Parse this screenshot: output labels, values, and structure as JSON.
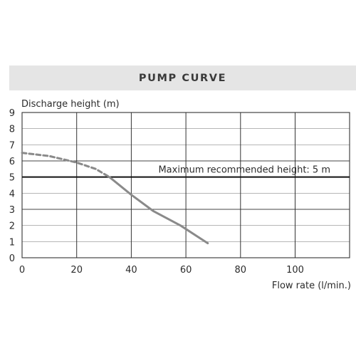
{
  "header": {
    "title": "PUMP CURVE"
  },
  "chart_data": {
    "type": "line",
    "title": "PUMP CURVE",
    "ylabel": "Discharge height (m)",
    "xlabel": "Flow rate (l/min.)",
    "xlim": [
      0,
      120
    ],
    "ylim": [
      0,
      9
    ],
    "xticks": [
      0,
      20,
      40,
      60,
      80,
      100
    ],
    "yticks": [
      0,
      1,
      2,
      3,
      4,
      5,
      6,
      7,
      8,
      9
    ],
    "grid": true,
    "series": [
      {
        "style": "dashed",
        "color": "#8a8a8a",
        "x": [
          0,
          10,
          20,
          27,
          32
        ],
        "y": [
          6.5,
          6.3,
          5.9,
          5.5,
          5.0
        ]
      },
      {
        "style": "solid",
        "color": "#8a8a8a",
        "x": [
          32,
          40,
          48,
          58,
          68
        ],
        "y": [
          5.0,
          3.9,
          2.9,
          2.0,
          0.9
        ]
      }
    ],
    "reference_line": {
      "y": 5,
      "label": "Maximum recommended height: 5 m",
      "color": "#111111"
    }
  }
}
